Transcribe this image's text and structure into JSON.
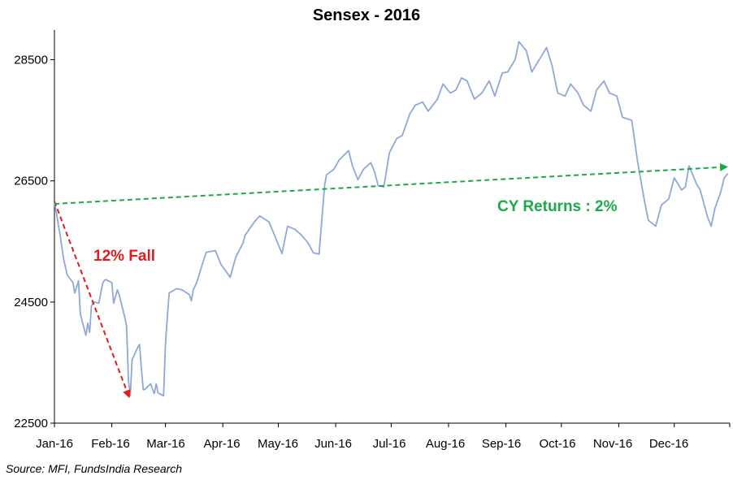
{
  "colors": {
    "series": "#8ea9d6",
    "axis": "#000000",
    "fall_arrow": "#e41a1c",
    "trend_arrow": "#1ea84a"
  },
  "chart_data": {
    "type": "line",
    "title": "Sensex - 2016",
    "xlabel": "",
    "ylabel": "",
    "ylim": [
      22500,
      29000
    ],
    "yticks": [
      "22500",
      "24500",
      "26500",
      "28500"
    ],
    "xticks": [
      "Jan-16",
      "Feb-16",
      "Mar-16",
      "Apr-16",
      "May-16",
      "Jun-16",
      "Jul-16",
      "Aug-16",
      "Sep-16",
      "Oct-16",
      "Nov-16",
      "Dec-16"
    ],
    "grid": false,
    "series": [
      {
        "x": [
          "2016-01-01",
          "2016-01-04",
          "2016-01-06",
          "2016-01-08",
          "2016-01-11",
          "2016-01-12",
          "2016-01-14",
          "2016-01-15",
          "2016-01-18",
          "2016-01-19",
          "2016-01-20",
          "2016-01-21",
          "2016-01-22",
          "2016-01-25",
          "2016-01-27",
          "2016-01-28",
          "2016-01-29",
          "2016-02-01",
          "2016-02-02",
          "2016-02-04",
          "2016-02-05",
          "2016-02-08",
          "2016-02-09",
          "2016-02-10",
          "2016-02-11",
          "2016-02-12",
          "2016-02-15",
          "2016-02-16",
          "2016-02-17",
          "2016-02-18",
          "2016-02-19",
          "2016-02-22",
          "2016-02-23",
          "2016-02-24",
          "2016-02-25",
          "2016-02-26",
          "2016-02-29",
          "2016-03-01",
          "2016-03-02",
          "2016-03-03",
          "2016-03-07",
          "2016-03-10",
          "2016-03-14",
          "2016-03-15",
          "2016-03-16",
          "2016-03-18",
          "2016-03-21",
          "2016-03-23",
          "2016-03-28",
          "2016-03-31",
          "2016-04-05",
          "2016-04-08",
          "2016-04-12",
          "2016-04-13",
          "2016-04-18",
          "2016-04-21",
          "2016-04-26",
          "2016-04-29",
          "2016-05-03",
          "2016-05-06",
          "2016-05-10",
          "2016-05-13",
          "2016-05-17",
          "2016-05-20",
          "2016-05-23",
          "2016-05-26",
          "2016-05-27",
          "2016-05-31",
          "2016-06-03",
          "2016-06-08",
          "2016-06-10",
          "2016-06-13",
          "2016-06-16",
          "2016-06-20",
          "2016-06-22",
          "2016-06-24",
          "2016-06-27",
          "2016-06-30",
          "2016-07-04",
          "2016-07-07",
          "2016-07-11",
          "2016-07-14",
          "2016-07-18",
          "2016-07-21",
          "2016-07-26",
          "2016-07-29",
          "2016-08-02",
          "2016-08-05",
          "2016-08-08",
          "2016-08-11",
          "2016-08-15",
          "2016-08-19",
          "2016-08-23",
          "2016-08-26",
          "2016-08-30",
          "2016-09-02",
          "2016-09-06",
          "2016-09-08",
          "2016-09-12",
          "2016-09-15",
          "2016-09-20",
          "2016-09-23",
          "2016-09-26",
          "2016-09-29",
          "2016-10-03",
          "2016-10-06",
          "2016-10-10",
          "2016-10-13",
          "2016-10-17",
          "2016-10-20",
          "2016-10-24",
          "2016-10-27",
          "2016-10-31",
          "2016-11-03",
          "2016-11-08",
          "2016-11-09",
          "2016-11-11",
          "2016-11-15",
          "2016-11-17",
          "2016-11-21",
          "2016-11-24",
          "2016-11-28",
          "2016-12-01",
          "2016-12-05",
          "2016-12-07",
          "2016-12-09",
          "2016-12-13",
          "2016-12-15",
          "2016-12-19",
          "2016-12-21",
          "2016-12-23",
          "2016-12-26",
          "2016-12-28",
          "2016-12-30"
        ],
        "values": [
          26160,
          25620,
          25200,
          24940,
          24820,
          24650,
          24850,
          24300,
          23950,
          24150,
          24000,
          24430,
          24500,
          24480,
          24800,
          24860,
          24870,
          24820,
          24480,
          24700,
          24620,
          24250,
          24100,
          23200,
          22950,
          23550,
          23750,
          23800,
          23400,
          23050,
          23060,
          23150,
          23060,
          22990,
          23150,
          23000,
          22950,
          23800,
          24250,
          24650,
          24720,
          24700,
          24620,
          24520,
          24700,
          24830,
          25130,
          25320,
          25350,
          25120,
          24910,
          25240,
          25480,
          25600,
          25820,
          25920,
          25820,
          25600,
          25300,
          25750,
          25700,
          25620,
          25480,
          25310,
          25290,
          26420,
          26600,
          26690,
          26850,
          27000,
          26750,
          26520,
          26690,
          26800,
          26650,
          26420,
          26400,
          26960,
          27200,
          27250,
          27600,
          27750,
          27800,
          27650,
          27850,
          28100,
          27950,
          28000,
          28200,
          28150,
          27850,
          27950,
          28150,
          27900,
          28280,
          28300,
          28500,
          28800,
          28650,
          28300,
          28550,
          28700,
          28400,
          27950,
          27900,
          28100,
          27950,
          27750,
          27650,
          28000,
          28150,
          27950,
          27900,
          27550,
          27500,
          27300,
          26850,
          26150,
          25850,
          25750,
          26100,
          26200,
          26550,
          26350,
          26400,
          26750,
          26450,
          26350,
          25900,
          25750,
          26050,
          26300,
          26550,
          26620
        ]
      }
    ],
    "annotations": {
      "fall_label": "12% Fall",
      "returns_label": "CY Returns : 2%"
    }
  },
  "footer": {
    "source": "Source: MFI, FundsIndia Research"
  }
}
